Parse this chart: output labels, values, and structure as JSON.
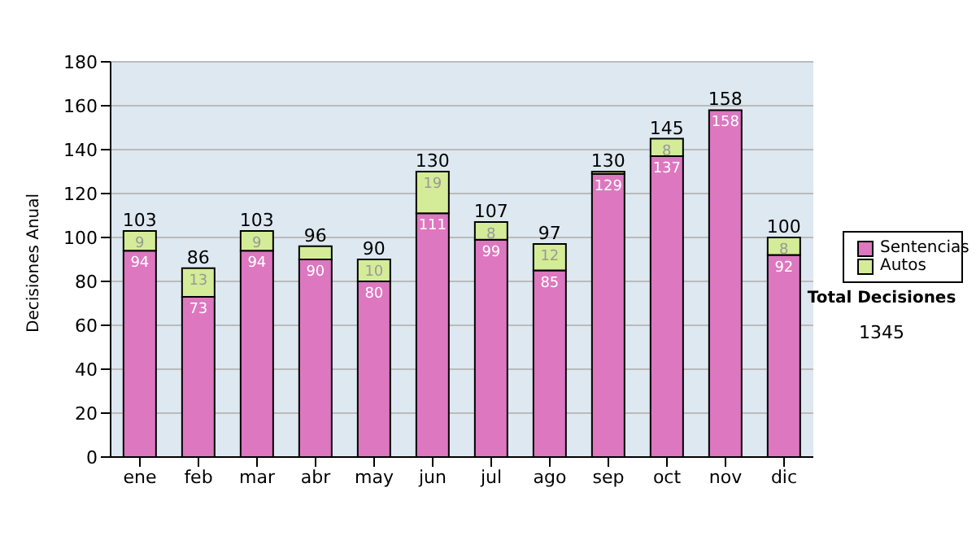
{
  "chart_data": {
    "type": "bar",
    "stacked": true,
    "ylabel": "Decisiones Anual",
    "categories": [
      "ene",
      "feb",
      "mar",
      "abr",
      "may",
      "jun",
      "jul",
      "ago",
      "sep",
      "oct",
      "nov",
      "dic"
    ],
    "series": [
      {
        "name": "Sentencias",
        "color": "#dd77c0",
        "values": [
          94,
          73,
          94,
          90,
          80,
          111,
          99,
          85,
          129,
          137,
          158,
          92
        ],
        "value_labels": [
          "94",
          "73",
          "94",
          "90",
          "80",
          "111",
          "99",
          "85",
          "129",
          "137",
          "158",
          "92"
        ]
      },
      {
        "name": "Autos",
        "color": "#d4ec98",
        "values": [
          9,
          13,
          9,
          6,
          10,
          19,
          8,
          12,
          1,
          8,
          0,
          8
        ],
        "value_labels": [
          "9",
          "13",
          "9",
          null,
          "10",
          "19",
          "8",
          "12",
          null,
          "8",
          null,
          "8"
        ]
      }
    ],
    "totals": [
      "103",
      "86",
      "103",
      "96",
      "90",
      "130",
      "107",
      "97",
      "130",
      "145",
      "158",
      "100"
    ],
    "ylim": [
      0,
      180
    ],
    "yticks": [
      0,
      20,
      40,
      60,
      80,
      100,
      120,
      140,
      160,
      180
    ],
    "grid": "y",
    "legend": "right",
    "annotations": [
      "Total Decisiones",
      "1345"
    ]
  }
}
